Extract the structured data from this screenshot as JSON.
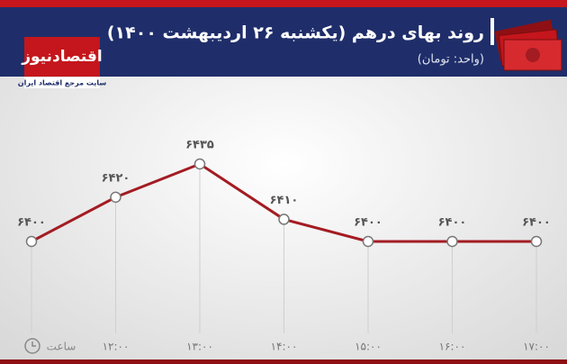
{
  "brand": {
    "name": "اقتصادنیوز",
    "tagline": "سایت مرجع اقتصاد ایران"
  },
  "chart_data": {
    "type": "line",
    "title": "روند بهای درهم (یکشنبه ۲۶ اردیبهشت ۱۴۰۰)",
    "subtitle": "(واحد: تومان)",
    "x_label": "ساعت",
    "categories": [
      null,
      "۱۲:۰۰",
      "۱۳:۰۰",
      "۱۴:۰۰",
      "۱۵:۰۰",
      "۱۶:۰۰",
      "۱۷:۰۰"
    ],
    "series": [
      {
        "name": "درهم",
        "color": "#a31c22",
        "values": [
          6400,
          6420,
          6435,
          6410,
          6400,
          6400,
          6400
        ],
        "value_labels": [
          "۶۴۰۰",
          "۶۴۲۰",
          "۶۴۳۵",
          "۶۴۱۰",
          "۶۴۰۰",
          "۶۴۰۰",
          "۶۴۰۰"
        ]
      }
    ]
  }
}
